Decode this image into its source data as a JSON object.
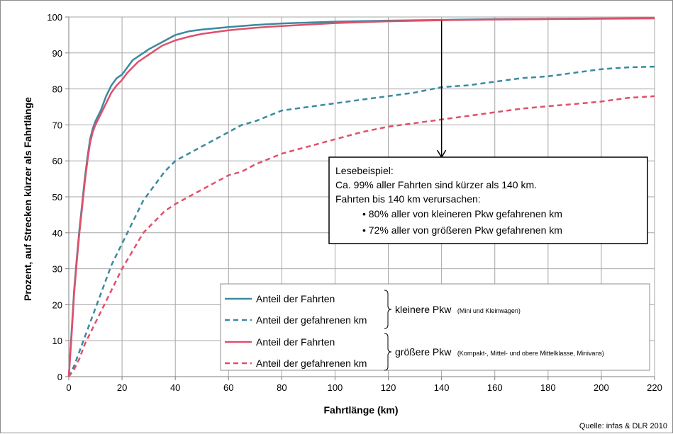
{
  "chart_data": {
    "type": "line",
    "xlabel": "Fahrtlänge (km)",
    "ylabel": "Prozent, auf Strecken kürzer als Fahrtlänge",
    "xlim": [
      0,
      220
    ],
    "ylim": [
      0,
      100
    ],
    "xticks": [
      0,
      20,
      40,
      60,
      80,
      100,
      120,
      140,
      160,
      180,
      200,
      220
    ],
    "yticks": [
      0,
      10,
      20,
      30,
      40,
      50,
      60,
      70,
      80,
      90,
      100
    ],
    "grid": true,
    "legend_position": "bottom-right",
    "series": [
      {
        "name": "Anteil der Fahrten",
        "group": "kleinere",
        "color": "#3a8aa0",
        "dash": "solid",
        "x": [
          0,
          1,
          2,
          3,
          4,
          5,
          6,
          7,
          8,
          9,
          10,
          12,
          14,
          16,
          18,
          20,
          22,
          24,
          26,
          28,
          30,
          35,
          40,
          45,
          50,
          60,
          70,
          80,
          100,
          120,
          140,
          160,
          180,
          200,
          220
        ],
        "y": [
          0,
          12,
          24,
          33,
          41,
          48,
          55,
          61,
          66,
          69,
          71,
          74,
          78,
          81,
          83,
          84,
          86,
          88,
          89,
          90,
          91,
          93,
          95,
          96,
          96.5,
          97.2,
          97.8,
          98.2,
          98.7,
          99,
          99.2,
          99.4,
          99.5,
          99.6,
          99.7
        ]
      },
      {
        "name": "Anteil der gefahrenen km",
        "group": "kleinere",
        "color": "#3a8aa0",
        "dash": "dashed",
        "x": [
          0,
          2,
          4,
          6,
          8,
          10,
          12,
          14,
          16,
          18,
          20,
          24,
          28,
          32,
          36,
          40,
          45,
          50,
          55,
          60,
          65,
          70,
          80,
          90,
          100,
          110,
          120,
          130,
          140,
          150,
          160,
          170,
          180,
          190,
          200,
          210,
          220
        ],
        "y": [
          0,
          3,
          7,
          11,
          15,
          19,
          23,
          27,
          31,
          34,
          37,
          43,
          49,
          53,
          57,
          60,
          62,
          64,
          66,
          68,
          70,
          71,
          74,
          75,
          76,
          77,
          78,
          79,
          80.5,
          81,
          82,
          83,
          83.5,
          84.5,
          85.5,
          86,
          86.2
        ]
      },
      {
        "name": "Anteil der Fahrten",
        "group": "größere",
        "color": "#e0506a",
        "dash": "solid",
        "x": [
          0,
          1,
          2,
          3,
          4,
          5,
          6,
          7,
          8,
          9,
          10,
          12,
          14,
          16,
          18,
          20,
          22,
          24,
          26,
          28,
          30,
          35,
          40,
          45,
          50,
          60,
          70,
          80,
          100,
          120,
          140,
          160,
          180,
          200,
          220
        ],
        "y": [
          0,
          11,
          23,
          32,
          40,
          47,
          54,
          60,
          65,
          68,
          70,
          73,
          76,
          79,
          81,
          82.5,
          84.5,
          86,
          87.5,
          88.5,
          89.5,
          92,
          93.5,
          94.5,
          95.3,
          96.3,
          97,
          97.5,
          98.3,
          98.8,
          99.1,
          99.3,
          99.4,
          99.5,
          99.6
        ]
      },
      {
        "name": "Anteil der gefahrenen km",
        "group": "größere",
        "color": "#e0506a",
        "dash": "dashed",
        "x": [
          0,
          2,
          4,
          6,
          8,
          10,
          12,
          14,
          16,
          18,
          20,
          24,
          28,
          32,
          36,
          40,
          45,
          50,
          55,
          60,
          65,
          70,
          80,
          90,
          100,
          110,
          120,
          130,
          140,
          150,
          160,
          170,
          180,
          190,
          200,
          210,
          220
        ],
        "y": [
          0,
          2,
          5,
          9,
          12,
          15,
          18,
          21,
          24,
          27,
          30,
          35,
          40,
          43,
          46,
          48,
          50,
          52,
          54,
          56,
          57,
          59,
          62,
          64,
          66,
          68,
          69.5,
          70.5,
          71.5,
          72.5,
          73.5,
          74.5,
          75.2,
          75.8,
          76.5,
          77.5,
          78
        ]
      }
    ],
    "annotation_arrow": {
      "x": 140,
      "y_from": 99,
      "y_to": 61
    },
    "groups": [
      {
        "label": "kleinere Pkw",
        "sub": "(Mini und Kleinwagen)"
      },
      {
        "label": "größere Pkw",
        "sub": "(Kompakt-, Mittel- und obere Mittelklasse, Minivans)"
      }
    ],
    "note": {
      "title": "Lesebeispiel:",
      "line1": "Ca. 99% aller Fahrten sind kürzer als 140 km.",
      "line2": "Fahrten bis 140 km verursachen:",
      "bullet1": "• 80% aller von kleineren Pkw gefahrenen km",
      "bullet2": "• 72% aller von größeren Pkw gefahrenen km"
    },
    "source": "Quelle: infas & DLR 2010"
  }
}
